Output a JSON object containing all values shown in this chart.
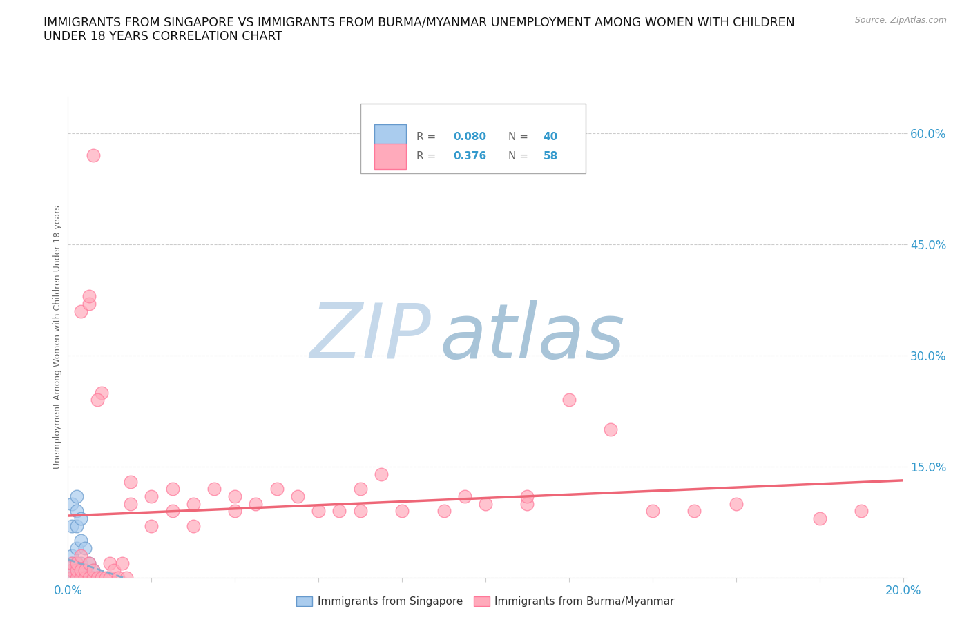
{
  "title": "IMMIGRANTS FROM SINGAPORE VS IMMIGRANTS FROM BURMA/MYANMAR UNEMPLOYMENT AMONG WOMEN WITH CHILDREN\nUNDER 18 YEARS CORRELATION CHART",
  "source": "Source: ZipAtlas.com",
  "ylabel": "Unemployment Among Women with Children Under 18 years",
  "xlim": [
    0.0,
    0.2
  ],
  "ylim": [
    0.0,
    0.65
  ],
  "yticks": [
    0.0,
    0.15,
    0.3,
    0.45,
    0.6
  ],
  "ytick_labels": [
    "",
    "15.0%",
    "30.0%",
    "45.0%",
    "60.0%"
  ],
  "xticks": [
    0.0,
    0.02,
    0.04,
    0.06,
    0.08,
    0.1,
    0.12,
    0.14,
    0.16,
    0.18,
    0.2
  ],
  "xtick_labels": [
    "0.0%",
    "",
    "",
    "",
    "",
    "",
    "",
    "",
    "",
    "",
    "20.0%"
  ],
  "color_singapore": "#aaccee",
  "color_burma": "#ffaabb",
  "color_singapore_edge": "#6699cc",
  "color_burma_edge": "#ff7799",
  "tick_label_color": "#3399cc",
  "grid_color": "#cccccc",
  "watermark_zip_color": "#c5d8ea",
  "watermark_atlas_color": "#a8c4d8",
  "background_color": "#ffffff",
  "trend_singapore_color": "#88aacc",
  "trend_burma_color": "#ee6677",
  "sg_x": [
    0.001,
    0.001,
    0.001,
    0.001,
    0.001,
    0.001,
    0.001,
    0.001,
    0.001,
    0.001,
    0.002,
    0.002,
    0.002,
    0.002,
    0.002,
    0.002,
    0.002,
    0.002,
    0.003,
    0.003,
    0.003,
    0.003,
    0.003,
    0.004,
    0.004,
    0.004,
    0.005,
    0.005,
    0.006,
    0.006,
    0.001,
    0.002,
    0.001,
    0.003,
    0.002,
    0.001,
    0.002,
    0.003,
    0.001,
    0.002
  ],
  "sg_y": [
    0.0,
    0.0,
    0.0,
    0.0,
    0.01,
    0.01,
    0.02,
    0.03,
    0.07,
    0.1,
    0.0,
    0.0,
    0.01,
    0.02,
    0.04,
    0.07,
    0.09,
    0.11,
    0.0,
    0.01,
    0.02,
    0.05,
    0.08,
    0.0,
    0.01,
    0.04,
    0.0,
    0.02,
    0.0,
    0.01,
    0.0,
    0.0,
    0.0,
    0.0,
    0.0,
    0.0,
    0.0,
    0.0,
    0.0,
    0.0
  ],
  "bu_x": [
    0.001,
    0.001,
    0.001,
    0.002,
    0.002,
    0.002,
    0.003,
    0.003,
    0.003,
    0.004,
    0.004,
    0.005,
    0.005,
    0.006,
    0.006,
    0.007,
    0.008,
    0.009,
    0.01,
    0.01,
    0.011,
    0.012,
    0.013,
    0.014,
    0.015,
    0.015,
    0.02,
    0.02,
    0.025,
    0.025,
    0.03,
    0.03,
    0.035,
    0.04,
    0.04,
    0.045,
    0.05,
    0.055,
    0.06,
    0.065,
    0.07,
    0.07,
    0.075,
    0.08,
    0.09,
    0.095,
    0.1,
    0.11,
    0.11,
    0.12,
    0.13,
    0.14,
    0.15,
    0.16,
    0.18,
    0.19,
    0.003,
    0.005,
    0.008
  ],
  "bu_y": [
    0.0,
    0.01,
    0.02,
    0.0,
    0.01,
    0.02,
    0.0,
    0.01,
    0.03,
    0.0,
    0.01,
    0.0,
    0.02,
    0.0,
    0.01,
    0.0,
    0.0,
    0.0,
    0.0,
    0.02,
    0.01,
    0.0,
    0.02,
    0.0,
    0.1,
    0.13,
    0.07,
    0.11,
    0.09,
    0.12,
    0.07,
    0.1,
    0.12,
    0.09,
    0.11,
    0.1,
    0.12,
    0.11,
    0.09,
    0.09,
    0.09,
    0.12,
    0.14,
    0.09,
    0.09,
    0.11,
    0.1,
    0.1,
    0.11,
    0.24,
    0.2,
    0.09,
    0.09,
    0.1,
    0.08,
    0.09,
    0.36,
    0.37,
    0.25
  ],
  "bu_outlier_x": [
    0.006
  ],
  "bu_outlier_y": [
    0.57
  ],
  "bu_outlier2_x": [
    0.005
  ],
  "bu_outlier2_y": [
    0.38
  ],
  "bu_outlier3_x": [
    0.007
  ],
  "bu_outlier3_y": [
    0.24
  ]
}
